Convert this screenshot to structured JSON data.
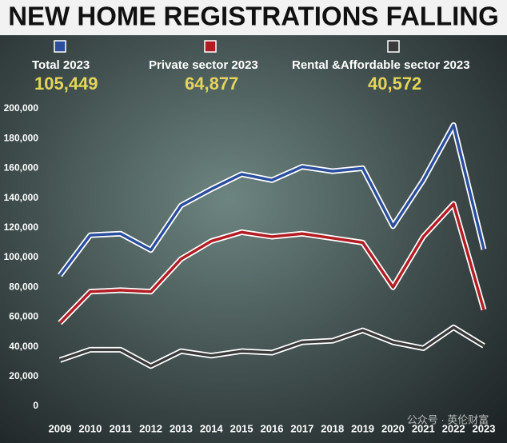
{
  "chart_data": {
    "type": "line",
    "title": "NEW HOME REGISTRATIONS FALLING",
    "categories": [
      "2009",
      "2010",
      "2011",
      "2012",
      "2013",
      "2014",
      "2015",
      "2016",
      "2017",
      "2018",
      "2019",
      "2020",
      "2021",
      "2022",
      "2023"
    ],
    "series": [
      {
        "name": "Total 2023",
        "value_label": "105,449",
        "color": "#2b4f9c",
        "values": [
          88000,
          115000,
          116000,
          105000,
          135000,
          146000,
          156000,
          152000,
          161000,
          158000,
          160000,
          121000,
          152000,
          189000,
          105449
        ]
      },
      {
        "name": "Private sector 2023",
        "value_label": "64,877",
        "color": "#b21d24",
        "values": [
          56000,
          77000,
          78000,
          77000,
          99000,
          111000,
          117000,
          114000,
          116000,
          113000,
          110000,
          80000,
          114000,
          136000,
          64877
        ]
      },
      {
        "name": "Rental &Affordable sector 2023",
        "value_label": "40,572",
        "color": "#3a3a3a",
        "values": [
          31000,
          38000,
          38000,
          27000,
          37000,
          34000,
          37000,
          36000,
          43000,
          44000,
          51000,
          43000,
          39000,
          53000,
          40572
        ]
      }
    ],
    "ylim": [
      0,
      200000
    ],
    "yticks": [
      0,
      {
        "value": 20000,
        "label": "20,000"
      },
      {
        "value": 40000,
        "label": "40,000"
      },
      {
        "value": 60000,
        "label": "60,000"
      },
      {
        "value": 80000,
        "label": "80,000"
      },
      {
        "value": 100000,
        "label": "100,000"
      },
      {
        "value": 120000,
        "label": "120,000"
      },
      {
        "value": 140000,
        "label": "140,000"
      },
      {
        "value": 160000,
        "label": "160,000"
      },
      {
        "value": 180000,
        "label": "180,000"
      },
      {
        "value": 200000,
        "label": "200,000"
      }
    ],
    "watermark": "公众号 · 英伦财富"
  }
}
